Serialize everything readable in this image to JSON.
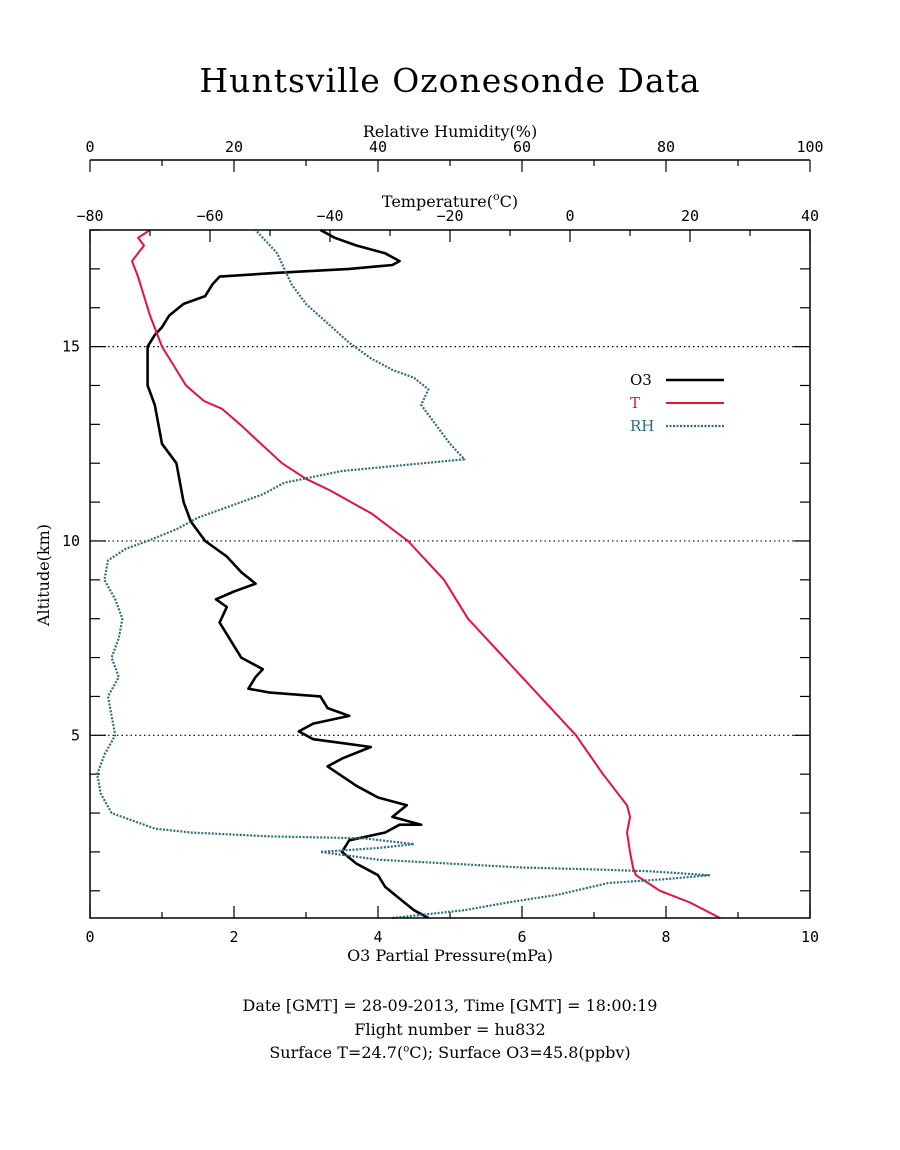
{
  "title": "Huntsville Ozonesonde Data",
  "footer": {
    "line1": "Date [GMT] = 28-09-2013,  Time [GMT] = 18:00:19",
    "line2": "Flight number = hu832",
    "line3_pre": "Surface T=24.7(",
    "line3_sup": "o",
    "line3_post": "C); Surface O3=45.8(ppbv)"
  },
  "colors": {
    "o3": "#000000",
    "t": "#e8103c",
    "rh": "#2e6e7e"
  },
  "chart_data": {
    "type": "line",
    "title": "Huntsville Ozonesonde Data",
    "ylabel": "Altitude(km)",
    "ylim": [
      0.3,
      18.0
    ],
    "yticks": [
      5,
      10,
      15
    ],
    "ygrid_lines": [
      5,
      10,
      15
    ],
    "axes": {
      "o3": {
        "label": "O3 Partial Pressure(mPa)",
        "lim": [
          0,
          10
        ],
        "ticks": [
          0,
          2,
          4,
          6,
          8,
          10
        ]
      },
      "rh": {
        "label": "Relative Humidity(%)",
        "lim": [
          0,
          100
        ],
        "ticks": [
          0,
          20,
          40,
          60,
          80,
          100
        ]
      },
      "t": {
        "label_pre": "Temperature(",
        "label_sup": "o",
        "label_post": "C)",
        "lim": [
          -80,
          40
        ],
        "ticks": [
          -80,
          -60,
          -40,
          -20,
          0,
          20,
          40
        ]
      }
    },
    "legend": {
      "placement": "right",
      "entries": [
        {
          "key": "o3",
          "label": "O3"
        },
        {
          "key": "t",
          "label": "T"
        },
        {
          "key": "rh",
          "label": "RH"
        }
      ]
    },
    "series": [
      {
        "name": "O3",
        "axis": "o3",
        "points": [
          [
            4.7,
            0.3
          ],
          [
            4.5,
            0.5
          ],
          [
            4.3,
            0.8
          ],
          [
            4.1,
            1.1
          ],
          [
            4.0,
            1.4
          ],
          [
            3.7,
            1.7
          ],
          [
            3.5,
            2.0
          ],
          [
            3.6,
            2.3
          ],
          [
            4.1,
            2.5
          ],
          [
            4.3,
            2.7
          ],
          [
            4.6,
            2.7
          ],
          [
            4.2,
            2.9
          ],
          [
            4.4,
            3.2
          ],
          [
            4.0,
            3.4
          ],
          [
            3.7,
            3.7
          ],
          [
            3.3,
            4.2
          ],
          [
            3.5,
            4.4
          ],
          [
            3.9,
            4.7
          ],
          [
            3.5,
            4.8
          ],
          [
            3.1,
            4.9
          ],
          [
            2.9,
            5.1
          ],
          [
            3.1,
            5.3
          ],
          [
            3.6,
            5.5
          ],
          [
            3.3,
            5.7
          ],
          [
            3.2,
            6.0
          ],
          [
            2.5,
            6.1
          ],
          [
            2.2,
            6.2
          ],
          [
            2.3,
            6.5
          ],
          [
            2.4,
            6.7
          ],
          [
            2.1,
            7.0
          ],
          [
            2.0,
            7.3
          ],
          [
            1.9,
            7.6
          ],
          [
            1.8,
            7.9
          ],
          [
            1.9,
            8.3
          ],
          [
            1.75,
            8.5
          ],
          [
            2.0,
            8.7
          ],
          [
            2.3,
            8.9
          ],
          [
            2.1,
            9.2
          ],
          [
            1.9,
            9.6
          ],
          [
            1.6,
            10.0
          ],
          [
            1.4,
            10.5
          ],
          [
            1.3,
            11.0
          ],
          [
            1.25,
            11.5
          ],
          [
            1.2,
            12.0
          ],
          [
            1.0,
            12.5
          ],
          [
            0.95,
            13.0
          ],
          [
            0.9,
            13.5
          ],
          [
            0.8,
            14.0
          ],
          [
            0.8,
            14.5
          ],
          [
            0.8,
            15.0
          ],
          [
            0.9,
            15.3
          ],
          [
            1.0,
            15.5
          ],
          [
            1.1,
            15.8
          ],
          [
            1.3,
            16.1
          ],
          [
            1.6,
            16.3
          ],
          [
            1.7,
            16.6
          ],
          [
            1.8,
            16.8
          ],
          [
            2.6,
            16.9
          ],
          [
            3.6,
            17.0
          ],
          [
            4.2,
            17.1
          ],
          [
            4.3,
            17.2
          ],
          [
            4.1,
            17.4
          ],
          [
            3.7,
            17.6
          ],
          [
            3.4,
            17.8
          ],
          [
            3.2,
            18.0
          ]
        ]
      },
      {
        "name": "T",
        "axis": "t",
        "points": [
          [
            25.0,
            0.3
          ],
          [
            20.0,
            0.7
          ],
          [
            15.0,
            1.0
          ],
          [
            13.0,
            1.2
          ],
          [
            11.0,
            1.4
          ],
          [
            10.5,
            1.6
          ],
          [
            10.0,
            2.0
          ],
          [
            9.5,
            2.5
          ],
          [
            10.0,
            2.9
          ],
          [
            9.5,
            3.2
          ],
          [
            5.5,
            4.0
          ],
          [
            1.0,
            5.0
          ],
          [
            -5.0,
            6.0
          ],
          [
            -11.0,
            7.0
          ],
          [
            -17.0,
            8.0
          ],
          [
            -19.0,
            8.5
          ],
          [
            -21.0,
            9.0
          ],
          [
            -27.0,
            10.0
          ],
          [
            -33.0,
            10.7
          ],
          [
            -40.0,
            11.3
          ],
          [
            -44.0,
            11.6
          ],
          [
            -48.0,
            12.0
          ],
          [
            -55.0,
            13.0
          ],
          [
            -58.0,
            13.4
          ],
          [
            -61.0,
            13.6
          ],
          [
            -64.0,
            14.0
          ],
          [
            -66.0,
            14.5
          ],
          [
            -68.0,
            15.0
          ],
          [
            -69.0,
            15.4
          ],
          [
            -70.0,
            15.8
          ],
          [
            -71.0,
            16.3
          ],
          [
            -72.0,
            16.8
          ],
          [
            -73.0,
            17.2
          ],
          [
            -71.0,
            17.6
          ],
          [
            -72.0,
            17.8
          ],
          [
            -70.0,
            18.0
          ]
        ]
      },
      {
        "name": "RH",
        "axis": "rh",
        "points": [
          [
            42.0,
            0.3
          ],
          [
            47.0,
            0.4
          ],
          [
            52.0,
            0.5
          ],
          [
            58.0,
            0.7
          ],
          [
            65.0,
            0.9
          ],
          [
            72.0,
            1.2
          ],
          [
            80.0,
            1.3
          ],
          [
            86.0,
            1.4
          ],
          [
            78.0,
            1.5
          ],
          [
            70.0,
            1.55
          ],
          [
            60.0,
            1.6
          ],
          [
            50.0,
            1.7
          ],
          [
            40.0,
            1.8
          ],
          [
            32.0,
            2.0
          ],
          [
            40.0,
            2.1
          ],
          [
            45.0,
            2.2
          ],
          [
            38.0,
            2.35
          ],
          [
            25.0,
            2.4
          ],
          [
            14.0,
            2.5
          ],
          [
            9.0,
            2.6
          ],
          [
            6.0,
            2.8
          ],
          [
            3.0,
            3.0
          ],
          [
            1.5,
            3.5
          ],
          [
            1.0,
            4.0
          ],
          [
            2.0,
            4.5
          ],
          [
            3.5,
            5.0
          ],
          [
            3.0,
            5.5
          ],
          [
            2.5,
            6.0
          ],
          [
            4.0,
            6.5
          ],
          [
            3.0,
            7.0
          ],
          [
            4.0,
            7.5
          ],
          [
            4.5,
            8.0
          ],
          [
            3.5,
            8.5
          ],
          [
            2.0,
            9.0
          ],
          [
            2.5,
            9.5
          ],
          [
            5.0,
            9.8
          ],
          [
            8.0,
            10.0
          ],
          [
            12.0,
            10.3
          ],
          [
            15.0,
            10.6
          ],
          [
            18.0,
            10.8
          ],
          [
            21.0,
            11.0
          ],
          [
            24.0,
            11.2
          ],
          [
            27.0,
            11.5
          ],
          [
            35.0,
            11.8
          ],
          [
            52.0,
            12.1
          ],
          [
            50.0,
            12.5
          ],
          [
            48.0,
            13.0
          ],
          [
            46.0,
            13.5
          ],
          [
            47.0,
            13.9
          ],
          [
            45.0,
            14.2
          ],
          [
            42.0,
            14.4
          ],
          [
            39.0,
            14.7
          ],
          [
            36.0,
            15.1
          ],
          [
            33.0,
            15.6
          ],
          [
            30.0,
            16.1
          ],
          [
            28.0,
            16.6
          ],
          [
            27.0,
            17.0
          ],
          [
            26.0,
            17.4
          ],
          [
            24.0,
            17.8
          ],
          [
            23.0,
            18.0
          ]
        ]
      }
    ]
  }
}
